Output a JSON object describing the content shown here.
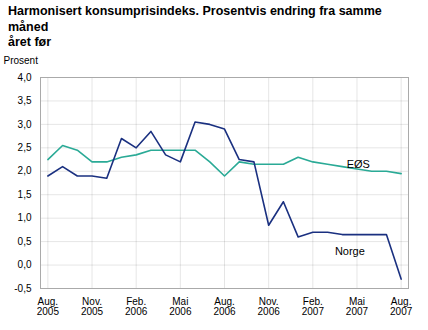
{
  "chart_data": {
    "type": "line",
    "title": "Harmonisert konsumprisindeks. Prosentvis endring fra samme måned\nåret før",
    "y_label": "Prosent",
    "categories": [
      "Aug.\n2005",
      null,
      null,
      "Nov.\n2005",
      null,
      null,
      "Feb.\n2006",
      null,
      null,
      "Mai\n2006",
      null,
      null,
      "Aug.\n2006",
      null,
      null,
      "Nov.\n2006",
      null,
      null,
      "Feb.\n2007",
      null,
      null,
      "Mai\n2007",
      null,
      null,
      "Aug.\n2007"
    ],
    "series": [
      {
        "name": "EØS",
        "color": "#2aaa96",
        "values": [
          2.25,
          2.55,
          2.45,
          2.2,
          2.2,
          2.3,
          2.35,
          2.45,
          2.45,
          2.45,
          2.45,
          2.2,
          1.9,
          2.2,
          2.15,
          2.15,
          2.15,
          2.3,
          2.2,
          2.15,
          2.1,
          2.05,
          2.0,
          2.0,
          1.95
        ]
      },
      {
        "name": "Norge",
        "color": "#1a3080",
        "values": [
          1.9,
          2.1,
          1.9,
          1.9,
          1.85,
          2.7,
          2.5,
          2.85,
          2.35,
          2.2,
          3.05,
          3.0,
          2.9,
          2.25,
          2.2,
          0.85,
          1.35,
          0.6,
          0.7,
          0.7,
          0.65,
          0.65,
          0.65,
          0.65,
          -0.3
        ]
      }
    ],
    "annotations": [
      {
        "text": "EØS",
        "x": 20.3,
        "y": 2.15
      },
      {
        "text": "Norge",
        "x": 19.5,
        "y": 0.3
      }
    ],
    "ylim": [
      -0.5,
      4.0
    ],
    "yticks": [
      {
        "value": 4.0,
        "label": "4,0"
      },
      {
        "value": 3.5,
        "label": "3,5"
      },
      {
        "value": 3.0,
        "label": "3,0"
      },
      {
        "value": 2.5,
        "label": "2,5"
      },
      {
        "value": 2.0,
        "label": "2,0"
      },
      {
        "value": 1.5,
        "label": "1,5"
      },
      {
        "value": 1.0,
        "label": "1,0"
      },
      {
        "value": 0.5,
        "label": "0,5"
      },
      {
        "value": 0.0,
        "label": "0,0"
      },
      {
        "value": -0.5,
        "label": "-0,5"
      }
    ],
    "grid": true
  }
}
